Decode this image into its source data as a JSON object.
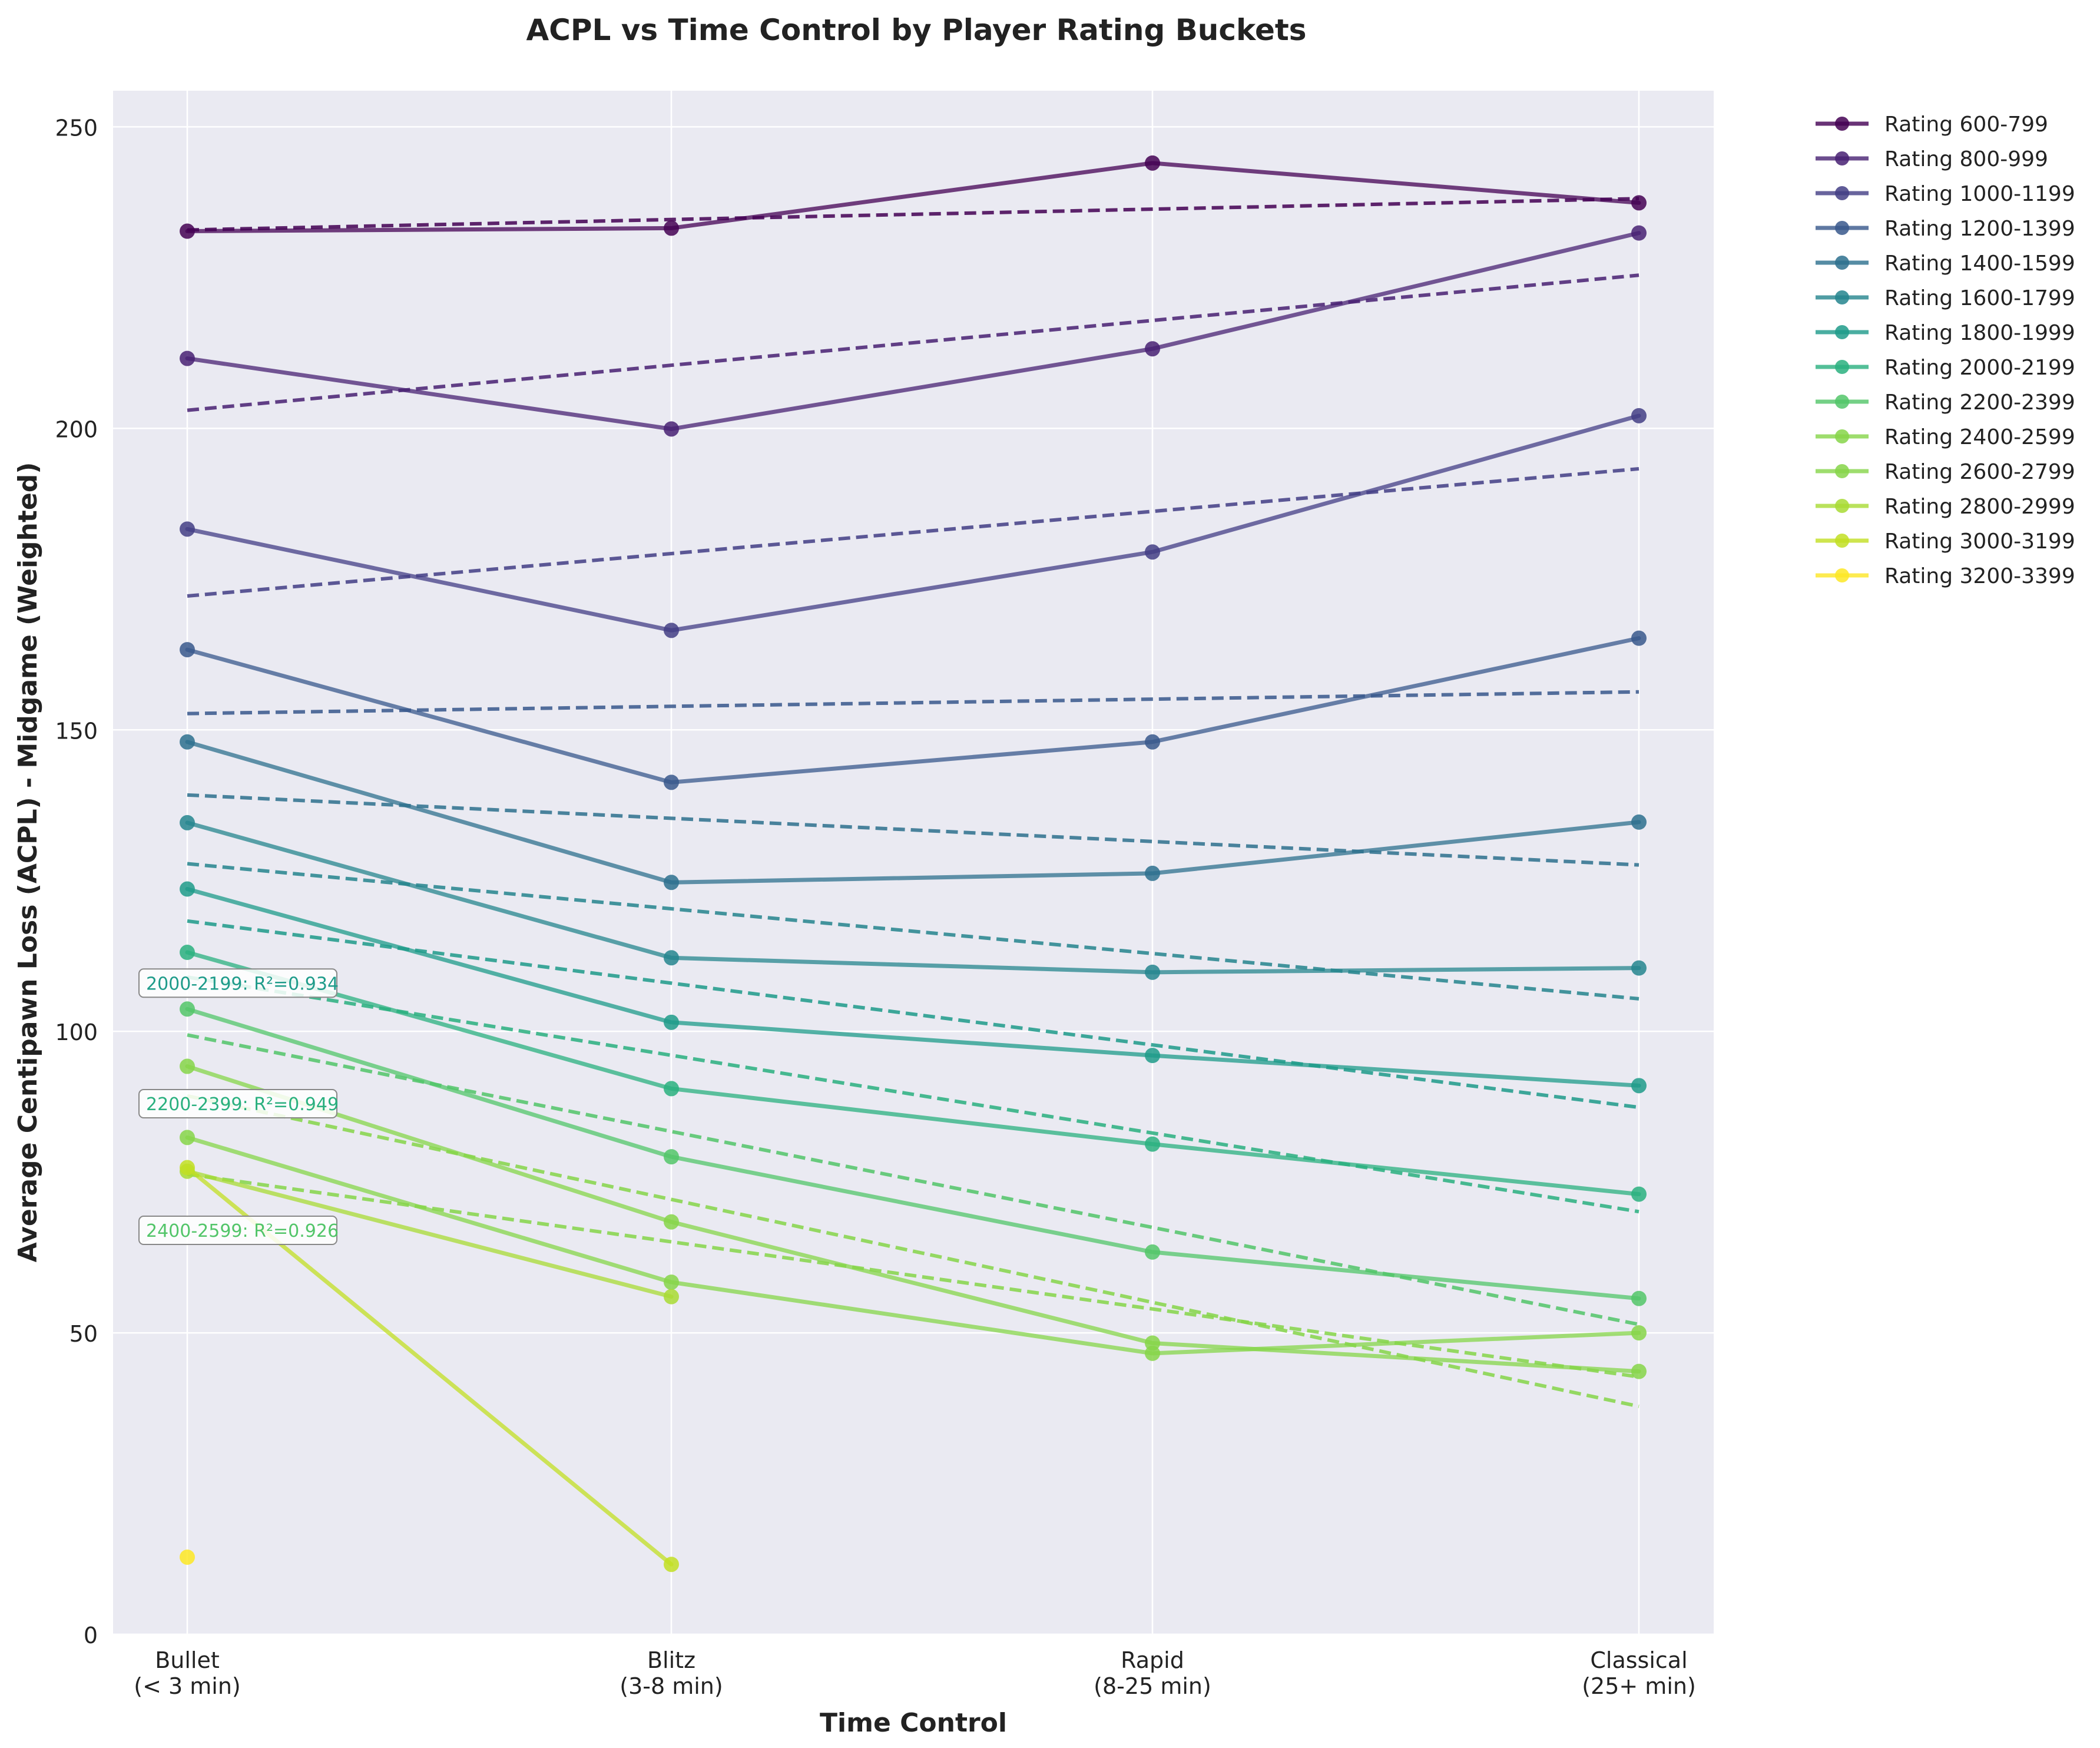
{
  "chart_data": {
    "type": "line",
    "title": "ACPL vs Time Control by Player Rating Buckets",
    "xlabel": "Time Control",
    "ylabel": "Average Centipawn Loss (ACPL) - Midgame (Weighted)",
    "categories": [
      "Bullet\n(< 3 min)",
      "Blitz\n(3-8 min)",
      "Rapid\n(8-25 min)",
      "Classical\n(25+ min)"
    ],
    "ylim": [
      0,
      256
    ],
    "yticks": [
      0,
      50,
      100,
      150,
      200,
      250
    ],
    "grid": true,
    "legend_position": "outside-right",
    "series": [
      {
        "name": "Rating 600-799",
        "color": "#440154",
        "values": [
          232.7,
          233.2,
          244.0,
          237.4
        ],
        "trend": [
          232.9,
          238.1
        ]
      },
      {
        "name": "Rating 800-999",
        "color": "#482173",
        "values": [
          211.6,
          199.9,
          213.2,
          232.4
        ],
        "trend": [
          203.0,
          225.4
        ]
      },
      {
        "name": "Rating 1000-1199",
        "color": "#433e85",
        "values": [
          183.3,
          166.5,
          179.5,
          202.1
        ],
        "trend": [
          172.2,
          193.3
        ]
      },
      {
        "name": "Rating 1200-1399",
        "color": "#38588c",
        "values": [
          163.3,
          141.3,
          148.0,
          165.2
        ],
        "trend": [
          152.7,
          156.3
        ]
      },
      {
        "name": "Rating 1400-1599",
        "color": "#2d708e",
        "values": [
          148.0,
          124.7,
          126.2,
          134.7
        ],
        "trend": [
          139.2,
          127.6
        ]
      },
      {
        "name": "Rating 1600-1799",
        "color": "#25858e",
        "values": [
          134.6,
          112.2,
          109.8,
          110.5
        ],
        "trend": [
          127.8,
          105.4
        ]
      },
      {
        "name": "Rating 1800-1999",
        "color": "#1e9b8a",
        "values": [
          123.6,
          101.5,
          96.0,
          91.0
        ],
        "trend": [
          118.3,
          87.4
        ]
      },
      {
        "name": "Rating 2000-2199",
        "color": "#2ab07f",
        "values": [
          113.1,
          90.5,
          81.3,
          73.0
        ],
        "trend": [
          109.0,
          70.1
        ]
      },
      {
        "name": "Rating 2200-2399",
        "color": "#52c569",
        "values": [
          103.7,
          79.2,
          63.4,
          55.7
        ],
        "trend": [
          99.4,
          51.4
        ]
      },
      {
        "name": "Rating 2400-2599",
        "color": "#86d549",
        "values": [
          94.2,
          68.4,
          48.3,
          43.6
        ],
        "trend": [
          89.3,
          37.8
        ]
      },
      {
        "name": "Rating 2600-2799",
        "color": "#86d549",
        "values": [
          82.4,
          58.4,
          46.6,
          50.0
        ],
        "trend": [
          76.3,
          42.7
        ]
      },
      {
        "name": "Rating 2800-2999",
        "color": "#a8db34",
        "values": [
          76.8,
          56.0,
          null,
          null
        ],
        "trend": null
      },
      {
        "name": "Rating 3000-3199",
        "color": "#c2df23",
        "values": [
          77.4,
          11.6,
          null,
          null
        ],
        "trend": null
      },
      {
        "name": "Rating 3200-3399",
        "color": "#fde725",
        "values": [
          12.8,
          null,
          null,
          null
        ],
        "trend": null
      }
    ],
    "annotations": [
      {
        "text": "2000-2199: R²=0.934",
        "color": "#1e9b8a",
        "x": 0,
        "y": 108
      },
      {
        "text": "2200-2399: R²=0.949",
        "color": "#2ab07f",
        "x": 0,
        "y": 88
      },
      {
        "text": "2400-2599: R²=0.926",
        "color": "#52c569",
        "x": 0,
        "y": 67
      }
    ]
  }
}
